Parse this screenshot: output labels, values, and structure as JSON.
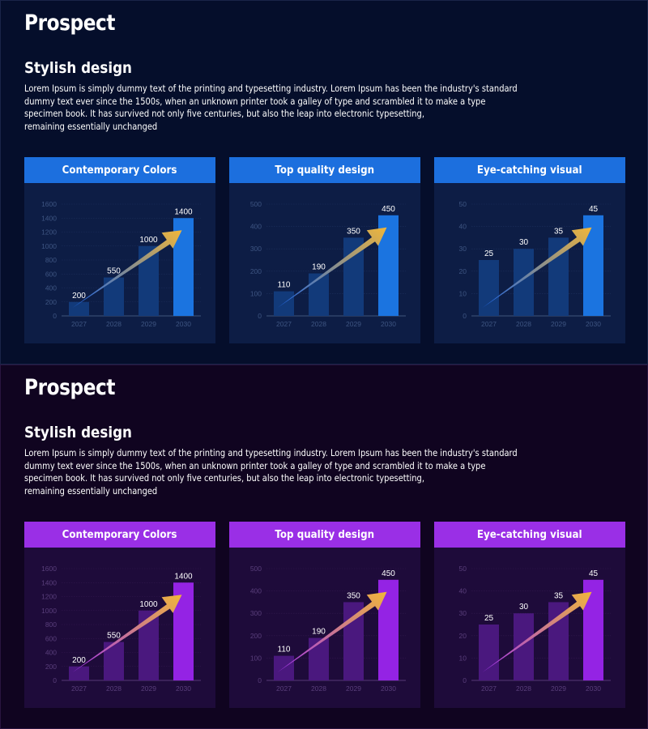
{
  "colors": {
    "blue_bg": "#050e2b",
    "blue_card": "#0d1d45",
    "blue_accent": "#1c6fde",
    "purple_bg": "#100420",
    "purple_card": "#1e0b3a",
    "purple_accent": "#9a2fe6",
    "arrow_gold": "#f0b63a"
  },
  "slides": [
    {
      "theme": "blue",
      "title": "Prospect",
      "subtitle": "Stylish design",
      "paragraph_lines": [
        "Lorem Ipsum is simply dummy text of the printing and typesetting industry. Lorem Ipsum has been the industry's standard",
        "dummy text ever since the 1500s, when an unknown printer took a galley of type and scrambled it to make a type",
        "specimen book. It has survived not only five centuries, but also the leap into electronic typesetting,",
        "remaining essentially unchanged"
      ],
      "cards": [
        "Contemporary Colors",
        "Top quality design",
        "Eye-catching visual"
      ]
    },
    {
      "theme": "purple",
      "title": "Prospect",
      "subtitle": "Stylish design",
      "paragraph_lines": [
        "Lorem Ipsum is simply dummy text of the printing and typesetting industry. Lorem Ipsum has been the industry's standard",
        "dummy text ever since the 1500s, when an unknown printer took a galley of type and scrambled it to make a type",
        "specimen book. It has survived not only five centuries, but also the leap into electronic typesetting,",
        "remaining essentially unchanged"
      ],
      "cards": [
        "Contemporary Colors",
        "Top quality design",
        "Eye-catching visual"
      ]
    }
  ],
  "chart_data": [
    {
      "type": "bar",
      "title": "Contemporary Colors",
      "categories": [
        "2027",
        "2028",
        "2029",
        "2030"
      ],
      "values": [
        200,
        550,
        1000,
        1400
      ],
      "ylim": [
        0,
        1600
      ],
      "yticks": [
        0,
        200,
        400,
        600,
        800,
        1000,
        1200,
        1400,
        1600
      ],
      "xlabel": "",
      "ylabel": "",
      "grid": true
    },
    {
      "type": "bar",
      "title": "Top quality design",
      "categories": [
        "2027",
        "2028",
        "2029",
        "2030"
      ],
      "values": [
        110,
        190,
        350,
        450
      ],
      "ylim": [
        0,
        500
      ],
      "yticks": [
        0,
        100,
        200,
        300,
        400,
        500
      ],
      "xlabel": "",
      "ylabel": "",
      "grid": true
    },
    {
      "type": "bar",
      "title": "Eye-catching visual",
      "categories": [
        "2027",
        "2028",
        "2029",
        "2030"
      ],
      "values": [
        25,
        30,
        35,
        45
      ],
      "ylim": [
        0,
        50
      ],
      "yticks": [
        0,
        10,
        20,
        30,
        40,
        50
      ],
      "xlabel": "",
      "ylabel": "",
      "grid": true
    }
  ]
}
